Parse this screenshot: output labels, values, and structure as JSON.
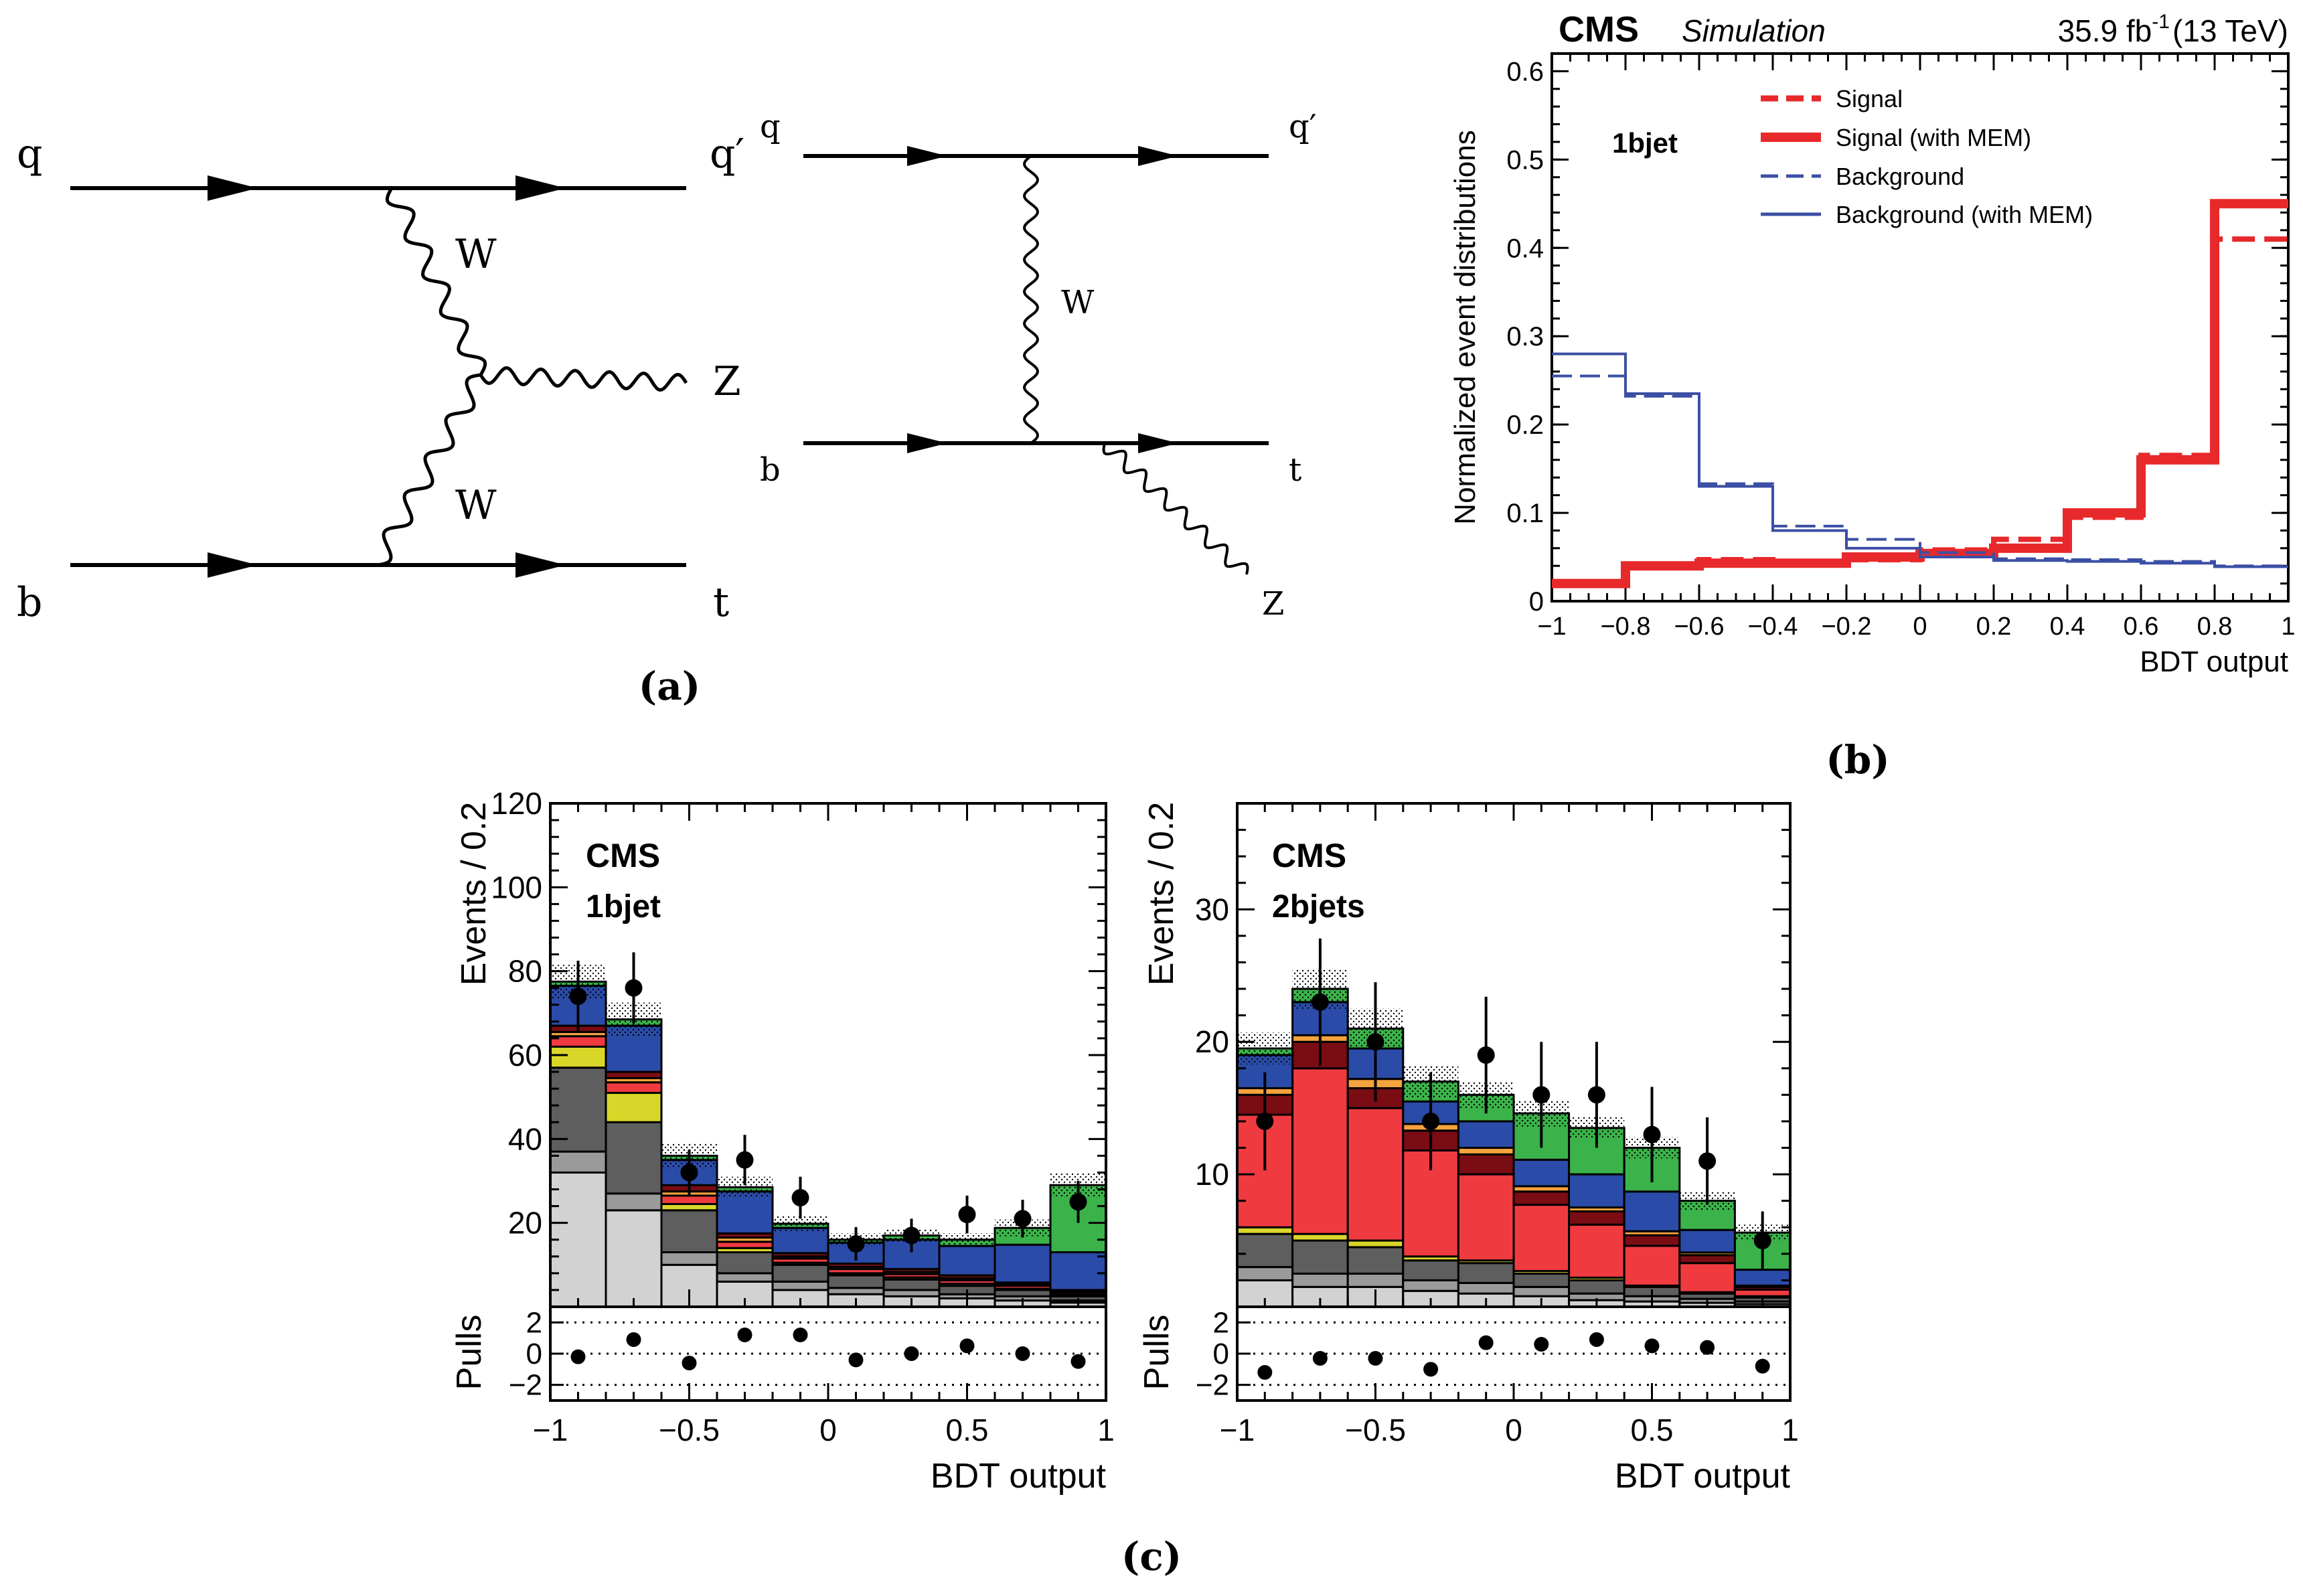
{
  "panel_labels": {
    "a": "(a)",
    "b": "(b)",
    "c": "(c)"
  },
  "feynman": {
    "d1": {
      "q_in": "q",
      "b_in": "b",
      "q_out": "q′",
      "t_out": "t",
      "z_out": "Z",
      "w_upper": "W",
      "w_lower": "W"
    },
    "d2": {
      "q_in": "q",
      "b_in": "b",
      "q_out": "q′",
      "t_out": "t",
      "z_out": "Z",
      "w": "W"
    }
  },
  "colors": {
    "signal": "#e8292b",
    "background": "#3b4fa5",
    "blue_fill": "#2b4ba8",
    "green": "#3bb34a",
    "red": "#ef3b40",
    "darkred": "#7a0c14",
    "orange": "#f5a33c",
    "yellow": "#d9d62a",
    "darkgray": "#5e5e5e",
    "midgray": "#9a9a9a",
    "lightgray": "#d2d2d2"
  },
  "chart_data": [
    {
      "id": "b",
      "type": "line",
      "step": true,
      "cms_label": "CMS",
      "sim_label": "Simulation",
      "lumi_label": "35.9 fb",
      "lumi_sup": "-1",
      "energy_label": "(13 TeV)",
      "category": "1bjet",
      "xlabel": "BDT output",
      "ylabel": "Normalized event distributions",
      "xlim": [
        -1,
        1
      ],
      "ylim": [
        0,
        0.62
      ],
      "xticks": [
        -1,
        -0.8,
        -0.6,
        -0.4,
        -0.2,
        0,
        0.2,
        0.4,
        0.6,
        0.8,
        1
      ],
      "xtick_labels": [
        "−1",
        "−0.8",
        "−0.6",
        "−0.4",
        "−0.2",
        "0",
        "0.2",
        "0.4",
        "0.6",
        "0.8",
        "1"
      ],
      "yticks": [
        0,
        0.1,
        0.2,
        0.3,
        0.4,
        0.5,
        0.6
      ],
      "ytick_labels": [
        "0",
        "0.1",
        "0.2",
        "0.3",
        "0.4",
        "0.5",
        "0.6"
      ],
      "bin_edges": [
        -1,
        -0.8,
        -0.6,
        -0.4,
        -0.2,
        0,
        0.2,
        0.4,
        0.6,
        0.8,
        1
      ],
      "legend_position": "top-right",
      "series": [
        {
          "name": "Signal",
          "style": "dashed",
          "color": "#e8292b",
          "width": 8,
          "values": [
            0.02,
            0.04,
            0.047,
            0.045,
            0.047,
            0.058,
            0.07,
            0.095,
            0.165,
            0.41
          ]
        },
        {
          "name": "Signal (with MEM)",
          "style": "solid",
          "color": "#e8292b",
          "width": 14,
          "values": [
            0.02,
            0.04,
            0.043,
            0.043,
            0.05,
            0.054,
            0.06,
            0.1,
            0.16,
            0.45
          ]
        },
        {
          "name": "Background",
          "style": "dashed",
          "color": "#3b4fa5",
          "width": 4,
          "values": [
            0.255,
            0.232,
            0.133,
            0.085,
            0.07,
            0.055,
            0.048,
            0.047,
            0.045,
            0.04
          ]
        },
        {
          "name": "Background (with MEM)",
          "style": "solid",
          "color": "#3b4fa5",
          "width": 4,
          "values": [
            0.28,
            0.235,
            0.13,
            0.08,
            0.06,
            0.05,
            0.046,
            0.045,
            0.043,
            0.039
          ]
        }
      ]
    },
    {
      "id": "c1",
      "type": "bar",
      "stacked": true,
      "cms_label": "CMS",
      "category": "1bjet",
      "xlabel": "BDT output",
      "ylabel": "Events / 0.2",
      "pulls_label": "Pulls",
      "xlim": [
        -1,
        1
      ],
      "ylim": [
        0,
        120
      ],
      "yticks": [
        20,
        40,
        60,
        80,
        100,
        120
      ],
      "ytick_labels": [
        "20",
        "40",
        "60",
        "80",
        "100",
        "120"
      ],
      "xticks": [
        -1,
        -0.5,
        0,
        0.5,
        1
      ],
      "xtick_labels": [
        "−1",
        "−0.5",
        "0",
        "0.5",
        "1"
      ],
      "pull_yticks": [
        -2,
        0,
        2
      ],
      "pull_ytick_labels": [
        "−2",
        "0",
        "2"
      ],
      "pull_ylim": [
        -3,
        3
      ],
      "bin_edges": [
        -1,
        -0.8,
        -0.6,
        -0.4,
        -0.2,
        0,
        0.2,
        0.4,
        0.6,
        0.8,
        1
      ],
      "stack": [
        {
          "color": "#d2d2d2",
          "values": [
            32,
            23,
            10,
            6,
            4,
            3,
            2.5,
            2,
            1.5,
            1
          ]
        },
        {
          "color": "#9a9a9a",
          "values": [
            5,
            4,
            3,
            2,
            2,
            1.5,
            1.5,
            1,
            1,
            0.5
          ]
        },
        {
          "color": "#5e5e5e",
          "values": [
            20,
            17,
            10,
            5,
            4,
            3,
            2.5,
            2,
            1.5,
            1
          ]
        },
        {
          "color": "#d9d62a",
          "values": [
            5,
            7,
            1.5,
            1,
            0.5,
            0.5,
            0.5,
            0.5,
            0.3,
            0.3
          ]
        },
        {
          "color": "#ef3b40",
          "values": [
            2.5,
            2.5,
            2,
            1.5,
            1,
            1,
            0.8,
            0.8,
            0.7,
            0.5
          ]
        },
        {
          "color": "#f5a33c",
          "values": [
            1,
            1,
            1,
            1,
            0.5,
            0.5,
            0.5,
            0.5,
            0.3,
            0.3
          ]
        },
        {
          "color": "#7a0c14",
          "values": [
            1.5,
            1.5,
            1.5,
            1,
            0.8,
            0.8,
            0.7,
            0.7,
            0.5,
            0.4
          ]
        },
        {
          "color": "#2b4ba8",
          "values": [
            9.5,
            11,
            6,
            10,
            6,
            5,
            7,
            7,
            9,
            9
          ]
        },
        {
          "color": "#3bb34a",
          "values": [
            1,
            1.5,
            1,
            1,
            1,
            0.7,
            1,
            1.5,
            4,
            16
          ]
        }
      ],
      "uncertainty": [
        4,
        4,
        3,
        2.5,
        2,
        1.5,
        1.5,
        1.5,
        2,
        3
      ],
      "data": [
        74,
        76,
        32,
        35,
        26,
        15,
        17,
        22,
        21,
        25
      ],
      "data_err": [
        8.5,
        8.5,
        5.5,
        6,
        5,
        4,
        4,
        4.5,
        4.5,
        5
      ],
      "pulls": [
        -0.2,
        0.9,
        -0.6,
        1.2,
        1.2,
        -0.4,
        0,
        0.5,
        0,
        -0.5
      ]
    },
    {
      "id": "c2",
      "type": "bar",
      "stacked": true,
      "cms_label": "CMS",
      "category": "2bjets",
      "xlabel": "BDT output",
      "ylabel": "Events / 0.2",
      "pulls_label": "Pulls",
      "xlim": [
        -1,
        1
      ],
      "ylim": [
        0,
        38
      ],
      "yticks": [
        10,
        20,
        30
      ],
      "ytick_labels": [
        "10",
        "20",
        "30"
      ],
      "xticks": [
        -1,
        -0.5,
        0,
        0.5,
        1
      ],
      "xtick_labels": [
        "−1",
        "−0.5",
        "0",
        "0.5",
        "1"
      ],
      "pull_yticks": [
        -2,
        0,
        2
      ],
      "pull_ytick_labels": [
        "−2",
        "0",
        "2"
      ],
      "pull_ylim": [
        -3,
        3
      ],
      "bin_edges": [
        -1,
        -0.8,
        -0.6,
        -0.4,
        -0.2,
        0,
        0.2,
        0.4,
        0.6,
        0.8,
        1
      ],
      "stack": [
        {
          "color": "#d2d2d2",
          "values": [
            2,
            1.5,
            1.5,
            1.2,
            1,
            0.8,
            0.5,
            0.4,
            0.3,
            0.2
          ]
        },
        {
          "color": "#9a9a9a",
          "values": [
            1,
            1,
            1,
            0.8,
            0.8,
            0.7,
            0.5,
            0.4,
            0.3,
            0.2
          ]
        },
        {
          "color": "#5e5e5e",
          "values": [
            2.5,
            2.5,
            2,
            1.5,
            1.5,
            1,
            1,
            0.7,
            0.4,
            0.3
          ]
        },
        {
          "color": "#d9d62a",
          "values": [
            0.5,
            0.5,
            0.5,
            0.3,
            0.2,
            0.2,
            0.2,
            0.1,
            0.1,
            0.1
          ]
        },
        {
          "color": "#ef3b40",
          "values": [
            8.5,
            12.5,
            10,
            8,
            6.5,
            5,
            4,
            3,
            2.2,
            0.5
          ]
        },
        {
          "color": "#7a0c14",
          "values": [
            1.5,
            2,
            1.5,
            1.5,
            1.5,
            1,
            1,
            0.8,
            0.6,
            0.2
          ]
        },
        {
          "color": "#f5a33c",
          "values": [
            0.5,
            0.5,
            0.7,
            0.5,
            0.5,
            0.4,
            0.3,
            0.3,
            0.2,
            0.1
          ]
        },
        {
          "color": "#2b4ba8",
          "values": [
            2.5,
            2.5,
            2.3,
            1.7,
            2,
            2,
            2.5,
            3,
            1.7,
            1.2
          ]
        },
        {
          "color": "#3bb34a",
          "values": [
            0.5,
            1,
            1.5,
            1.5,
            2,
            3.5,
            3.5,
            3.3,
            2.2,
            2.8
          ]
        }
      ],
      "uncertainty": [
        1.2,
        1.5,
        1.5,
        1.2,
        1,
        1,
        0.8,
        0.8,
        0.7,
        0.6
      ],
      "data": [
        14,
        23,
        20,
        14,
        19,
        16,
        16,
        13,
        11,
        5
      ],
      "data_err": [
        3.7,
        4.8,
        4.5,
        3.7,
        4.4,
        4,
        4,
        3.6,
        3.3,
        2.2
      ],
      "pulls": [
        -1.2,
        -0.3,
        -0.3,
        -1,
        0.7,
        0.6,
        0.9,
        0.5,
        0.4,
        -0.8
      ]
    }
  ]
}
